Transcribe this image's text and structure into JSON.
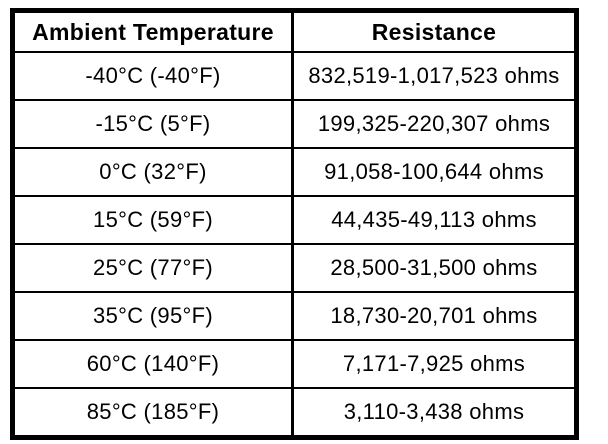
{
  "colors": {
    "background": "#ffffff",
    "border": "#000000",
    "text": "#000000"
  },
  "table": {
    "headers": [
      "Ambient Temperature",
      "Resistance"
    ],
    "rows": [
      {
        "temperature": "-40°C (-40°F)",
        "resistance": "832,519-1,017,523 ohms"
      },
      {
        "temperature": "-15°C (5°F)",
        "resistance": "199,325-220,307 ohms"
      },
      {
        "temperature": "0°C (32°F)",
        "resistance": "91,058-100,644 ohms"
      },
      {
        "temperature": "15°C (59°F)",
        "resistance": "44,435-49,113 ohms"
      },
      {
        "temperature": "25°C (77°F)",
        "resistance": "28,500-31,500 ohms"
      },
      {
        "temperature": "35°C (95°F)",
        "resistance": "18,730-20,701 ohms"
      },
      {
        "temperature": "60°C (140°F)",
        "resistance": "7,171-7,925 ohms"
      },
      {
        "temperature": "85°C (185°F)",
        "resistance": "3,110-3,438 ohms"
      }
    ]
  },
  "chart_data": {
    "type": "table",
    "title": "",
    "columns": [
      "Ambient Temperature",
      "Resistance"
    ],
    "rows": [
      [
        "-40°C (-40°F)",
        "832,519-1,017,523 ohms"
      ],
      [
        "-15°C (5°F)",
        "199,325-220,307 ohms"
      ],
      [
        "0°C (32°F)",
        "91,058-100,644 ohms"
      ],
      [
        "15°C (59°F)",
        "44,435-49,113 ohms"
      ],
      [
        "25°C (77°F)",
        "28,500-31,500 ohms"
      ],
      [
        "35°C (95°F)",
        "18,730-20,701 ohms"
      ],
      [
        "60°C (140°F)",
        "7,171-7,925 ohms"
      ],
      [
        "85°C (185°F)",
        "3,110-3,438 ohms"
      ]
    ]
  }
}
